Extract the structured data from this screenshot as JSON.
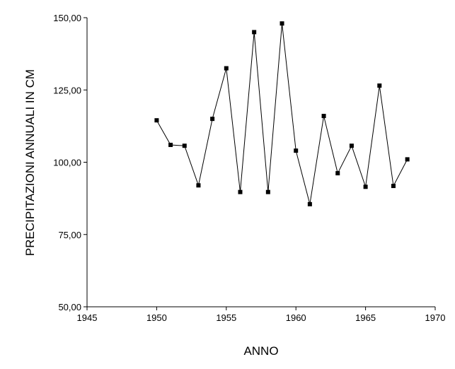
{
  "chart_data": {
    "type": "line",
    "title": "",
    "xlabel": "ANNO",
    "ylabel": "PRECIPITAZIONI ANNUALI IN CM",
    "xlim": [
      1945,
      1970
    ],
    "ylim": [
      50,
      150
    ],
    "x_ticks": [
      1945,
      1950,
      1955,
      1960,
      1965,
      1970
    ],
    "x_tick_labels": [
      "1945",
      "1950",
      "1955",
      "1960",
      "1965",
      "1970"
    ],
    "y_ticks": [
      50,
      75,
      100,
      125,
      150
    ],
    "y_tick_labels": [
      "50,00",
      "75,00",
      "100,00",
      "125,00",
      "150,00"
    ],
    "grid": false,
    "series": [
      {
        "x": [
          1950,
          1951,
          1952,
          1953,
          1954,
          1955,
          1956,
          1957,
          1958,
          1959,
          1960,
          1961,
          1962,
          1963,
          1964,
          1965,
          1966,
          1967,
          1968
        ],
        "values": [
          114.5,
          106,
          105.7,
          92,
          115,
          132.5,
          89.7,
          145,
          89.7,
          148,
          104,
          85.5,
          116,
          96.2,
          105.7,
          91.5,
          126.5,
          91.8,
          101
        ],
        "color": "#000000"
      }
    ]
  }
}
